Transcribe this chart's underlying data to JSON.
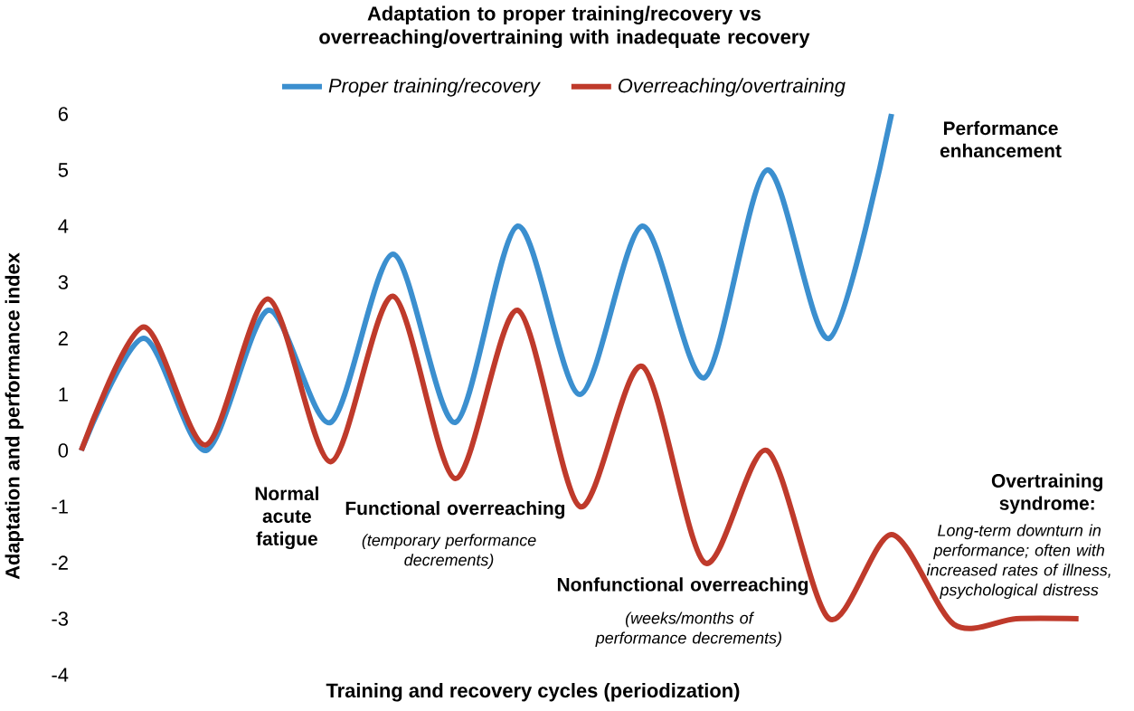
{
  "chart_data": {
    "type": "line",
    "title": "Adaptation to proper training/recovery vs overreaching/overtraining with inadequate recovery",
    "xlabel": "Training and recovery cycles (periodization)",
    "ylabel": "Adaptation and performance index",
    "categories": [
      null,
      null,
      null,
      null,
      null,
      null,
      null,
      null,
      null,
      null,
      null,
      null,
      null,
      null,
      null,
      null,
      null
    ],
    "series": [
      {
        "name": "Proper training/recovery",
        "color": "#3b8fcf",
        "values": [
          0,
          2,
          0,
          2.5,
          0.5,
          3.5,
          0.5,
          4,
          1,
          4,
          1.3,
          5,
          2,
          6,
          null,
          null,
          null
        ]
      },
      {
        "name": "Overreaching/overtraining",
        "color": "#bf3a2b",
        "values": [
          0,
          2.2,
          0.1,
          2.7,
          -0.2,
          2.75,
          -0.5,
          2.5,
          -1,
          1.5,
          -2,
          0,
          -3,
          -1.5,
          -3.1,
          -3,
          -3
        ]
      }
    ],
    "ylim": [
      -4,
      6
    ],
    "yticks": [
      -4,
      -3,
      -2,
      -1,
      0,
      1,
      2,
      3,
      4,
      5,
      6
    ],
    "tick_labels": "y",
    "legend": "top",
    "marker": "none",
    "line_style": "solid",
    "annotations": [
      "Performance enhancement",
      "Normal acute fatigue",
      "Functional overreaching",
      "(temporary performance decrements)",
      "Nonfunctional overreaching",
      "(weeks/months of performance decrements)",
      "Overtraining syndrome:",
      "Long-term downturn in performance; often with increased rates of illness, psychological distress"
    ]
  }
}
